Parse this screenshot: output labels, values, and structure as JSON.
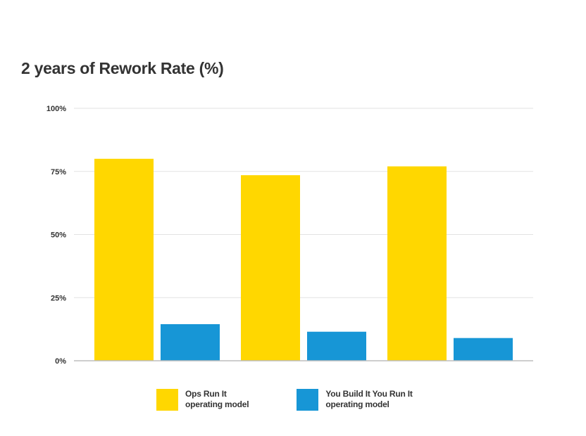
{
  "chart_data": {
    "type": "bar",
    "title": "2 years of Rework Rate (%)",
    "categories": [
      "",
      "",
      ""
    ],
    "series": [
      {
        "name": "Ops Run It\noperating model",
        "values": [
          80,
          73.5,
          77
        ],
        "color": "#FFD700"
      },
      {
        "name": "You Build It You Run It\noperating model",
        "values": [
          14.5,
          11.5,
          9
        ],
        "color": "#1796D6"
      }
    ],
    "yticks": [
      "0%",
      "25%",
      "50%",
      "75%",
      "100%"
    ],
    "ylim": [
      0,
      100
    ],
    "grid": true,
    "legend_position": "bottom",
    "colors": {
      "grid": "#E2E2E2",
      "axis": "#BDBDBD",
      "text": "#333333"
    }
  }
}
